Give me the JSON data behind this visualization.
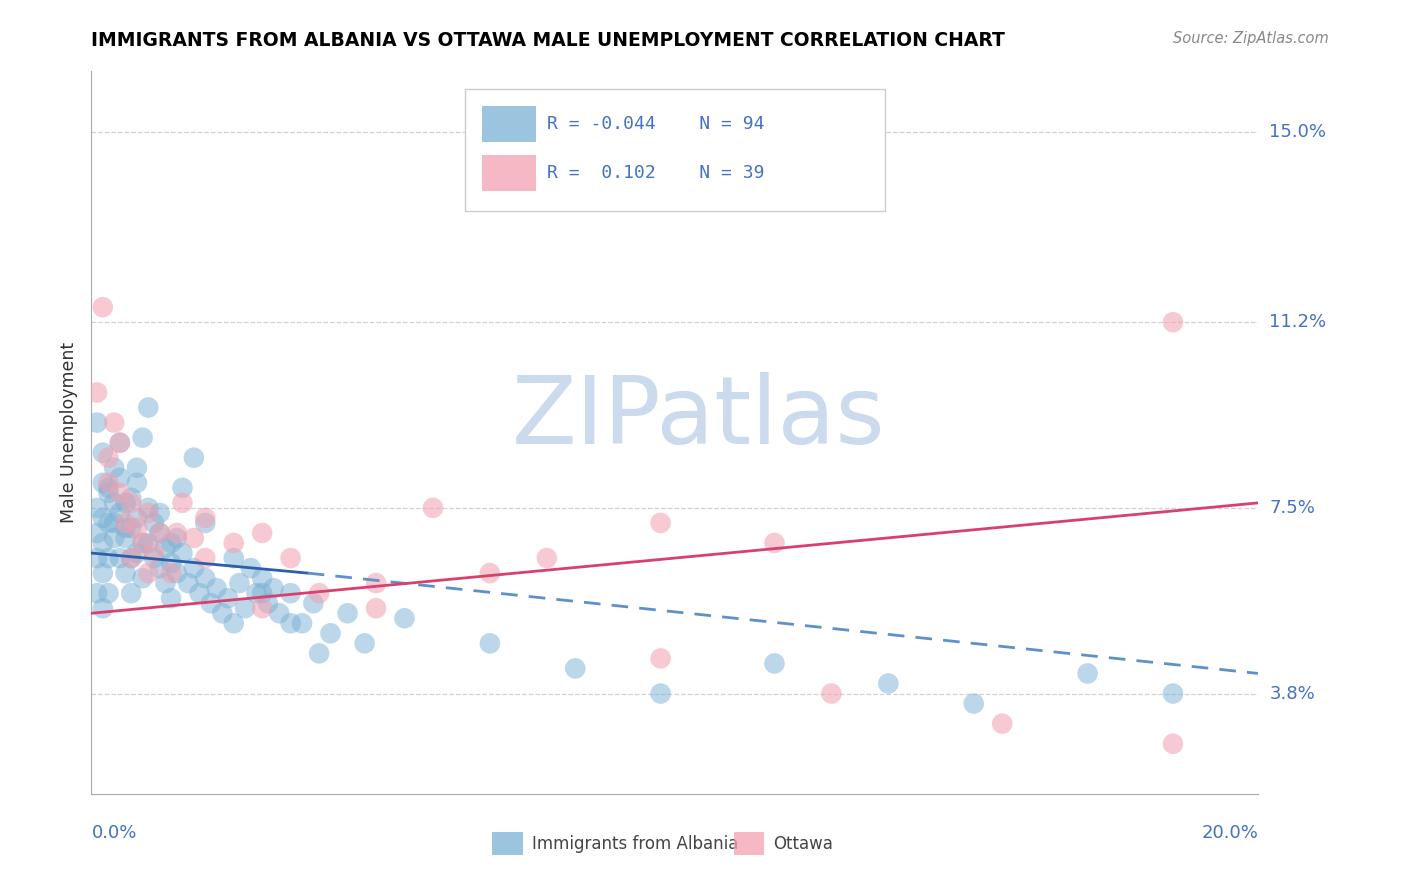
{
  "title": "IMMIGRANTS FROM ALBANIA VS OTTAWA MALE UNEMPLOYMENT CORRELATION CHART",
  "source": "Source: ZipAtlas.com",
  "xlabel_blue": "Immigrants from Albania",
  "xlabel_pink": "Ottawa",
  "ylabel": "Male Unemployment",
  "xlim": [
    0.0,
    0.205
  ],
  "ylim": [
    0.018,
    0.162
  ],
  "ytick_labels": [
    "3.8%",
    "7.5%",
    "11.2%",
    "15.0%"
  ],
  "ytick_vals": [
    0.038,
    0.075,
    0.112,
    0.15
  ],
  "xtick_labels": [
    "0.0%",
    "20.0%"
  ],
  "legend_r_blue": "-0.044",
  "legend_n_blue": "94",
  "legend_r_pink": " 0.102",
  "legend_n_pink": "39",
  "blue_color": "#7ab0d5",
  "pink_color": "#f2a0b0",
  "trend_blue_solid_color": "#2c5fa8",
  "trend_blue_dash_color": "#6090c8",
  "trend_pink_color": "#d84070",
  "watermark_text": "ZIPatlas",
  "watermark_color": "#ccdaee",
  "blue_scatter_x": [
    0.001,
    0.001,
    0.001,
    0.001,
    0.002,
    0.002,
    0.002,
    0.002,
    0.002,
    0.003,
    0.003,
    0.003,
    0.003,
    0.004,
    0.004,
    0.004,
    0.005,
    0.005,
    0.005,
    0.006,
    0.006,
    0.006,
    0.007,
    0.007,
    0.007,
    0.008,
    0.008,
    0.008,
    0.009,
    0.009,
    0.01,
    0.01,
    0.011,
    0.011,
    0.012,
    0.012,
    0.013,
    0.013,
    0.014,
    0.014,
    0.015,
    0.015,
    0.016,
    0.017,
    0.018,
    0.019,
    0.02,
    0.021,
    0.022,
    0.023,
    0.024,
    0.025,
    0.026,
    0.027,
    0.028,
    0.029,
    0.03,
    0.031,
    0.032,
    0.033,
    0.035,
    0.037,
    0.039,
    0.042,
    0.045,
    0.048,
    0.001,
    0.002,
    0.003,
    0.004,
    0.005,
    0.006,
    0.007,
    0.008,
    0.009,
    0.01,
    0.012,
    0.014,
    0.016,
    0.018,
    0.02,
    0.025,
    0.03,
    0.035,
    0.04,
    0.055,
    0.07,
    0.085,
    0.1,
    0.12,
    0.14,
    0.155,
    0.175,
    0.19
  ],
  "blue_scatter_y": [
    0.065,
    0.07,
    0.058,
    0.075,
    0.08,
    0.068,
    0.062,
    0.073,
    0.055,
    0.078,
    0.072,
    0.065,
    0.058,
    0.083,
    0.076,
    0.069,
    0.088,
    0.081,
    0.074,
    0.076,
    0.069,
    0.062,
    0.071,
    0.065,
    0.058,
    0.08,
    0.073,
    0.066,
    0.068,
    0.061,
    0.075,
    0.068,
    0.072,
    0.065,
    0.07,
    0.063,
    0.067,
    0.06,
    0.064,
    0.057,
    0.069,
    0.062,
    0.066,
    0.06,
    0.063,
    0.058,
    0.061,
    0.056,
    0.059,
    0.054,
    0.057,
    0.052,
    0.06,
    0.055,
    0.063,
    0.058,
    0.061,
    0.056,
    0.059,
    0.054,
    0.058,
    0.052,
    0.056,
    0.05,
    0.054,
    0.048,
    0.092,
    0.086,
    0.079,
    0.072,
    0.065,
    0.071,
    0.077,
    0.083,
    0.089,
    0.095,
    0.074,
    0.068,
    0.079,
    0.085,
    0.072,
    0.065,
    0.058,
    0.052,
    0.046,
    0.053,
    0.048,
    0.043,
    0.038,
    0.044,
    0.04,
    0.036,
    0.042,
    0.038
  ],
  "pink_scatter_x": [
    0.001,
    0.002,
    0.003,
    0.004,
    0.005,
    0.006,
    0.007,
    0.008,
    0.009,
    0.01,
    0.011,
    0.012,
    0.014,
    0.016,
    0.018,
    0.02,
    0.025,
    0.03,
    0.035,
    0.04,
    0.05,
    0.06,
    0.08,
    0.1,
    0.12,
    0.19,
    0.003,
    0.005,
    0.007,
    0.01,
    0.015,
    0.02,
    0.03,
    0.05,
    0.07,
    0.1,
    0.13,
    0.16,
    0.19
  ],
  "pink_scatter_y": [
    0.098,
    0.115,
    0.085,
    0.092,
    0.078,
    0.072,
    0.065,
    0.071,
    0.068,
    0.074,
    0.066,
    0.07,
    0.062,
    0.076,
    0.069,
    0.073,
    0.068,
    0.07,
    0.065,
    0.058,
    0.06,
    0.075,
    0.065,
    0.072,
    0.068,
    0.112,
    0.08,
    0.088,
    0.076,
    0.062,
    0.07,
    0.065,
    0.055,
    0.055,
    0.062,
    0.045,
    0.038,
    0.032,
    0.028
  ],
  "trend_blue_x0": 0.0,
  "trend_blue_y0": 0.066,
  "trend_blue_x_solid_end": 0.038,
  "trend_blue_y_solid_end": 0.062,
  "trend_blue_x1": 0.205,
  "trend_blue_y1": 0.042,
  "trend_pink_x0": 0.0,
  "trend_pink_y0": 0.054,
  "trend_pink_x1": 0.205,
  "trend_pink_y1": 0.076
}
